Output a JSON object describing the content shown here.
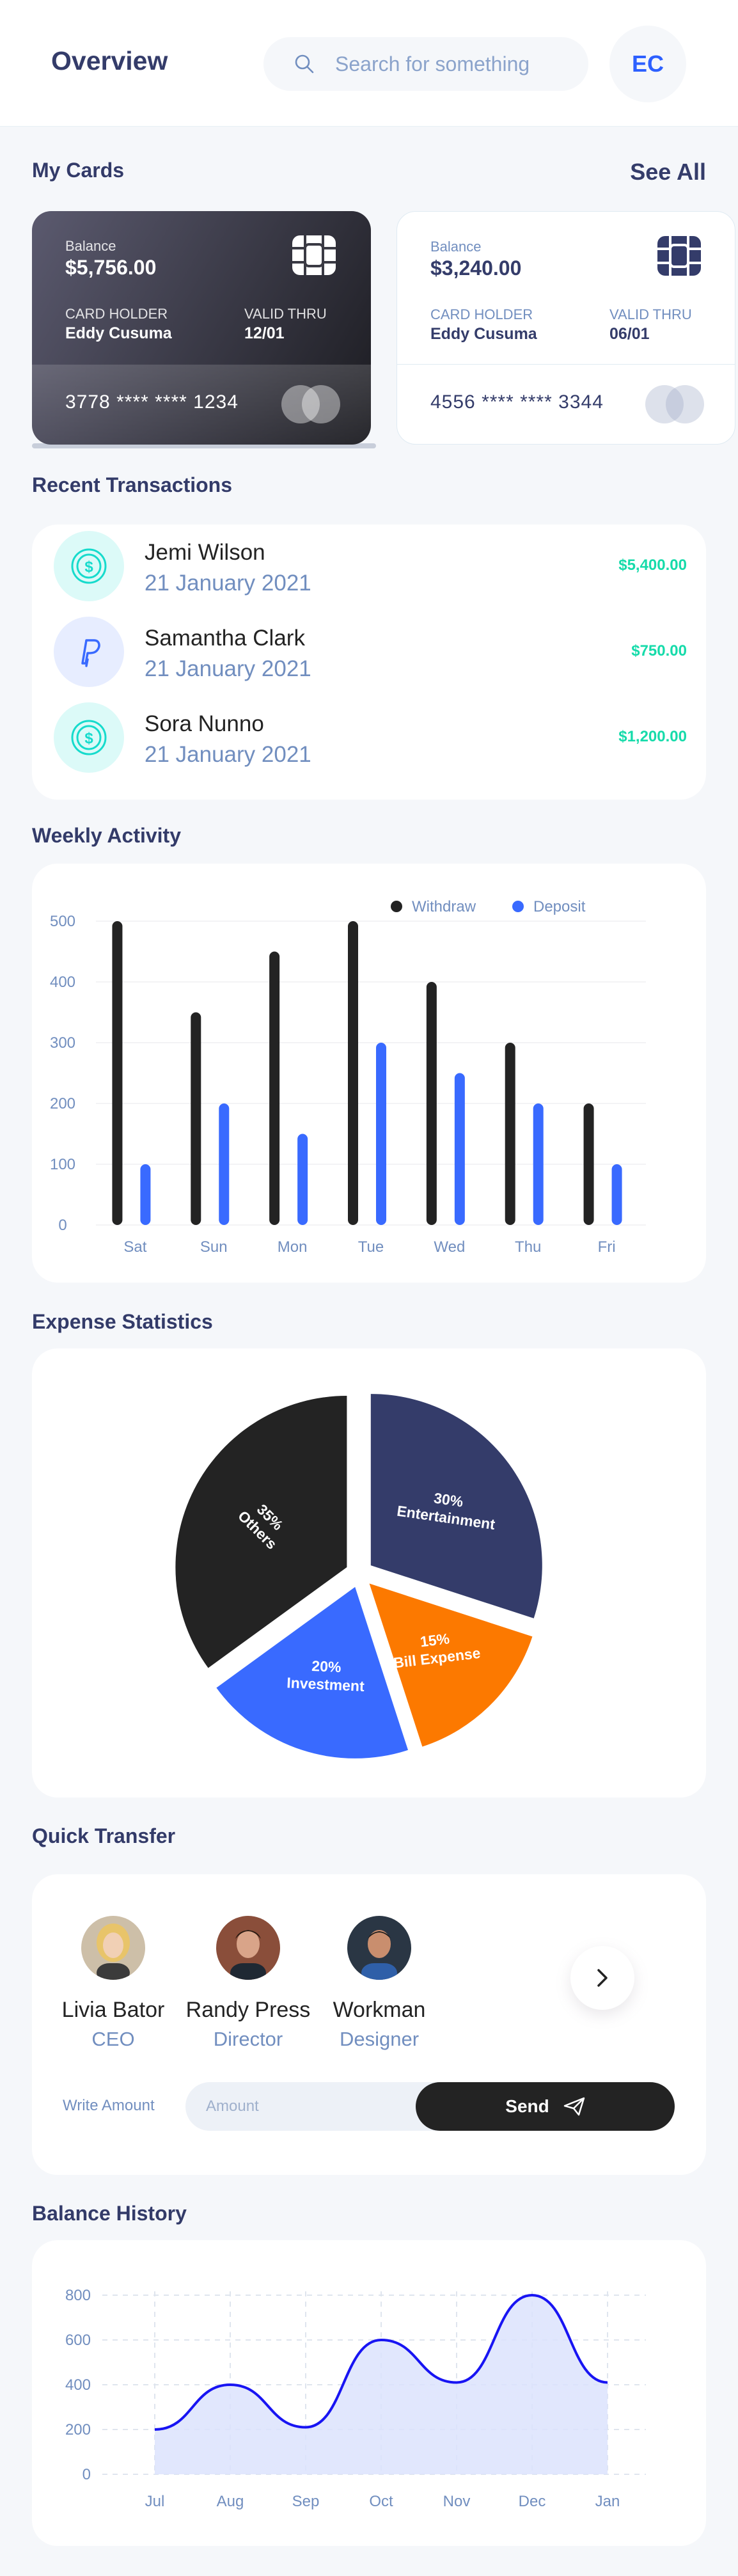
{
  "header": {
    "title": "Overview",
    "search_placeholder": "Search for something",
    "avatar_initials": "EC"
  },
  "my_cards": {
    "title": "My Cards",
    "see_all": "See All",
    "cards": [
      {
        "balance_label": "Balance",
        "balance": "$5,756.00",
        "holder_label": "CARD HOLDER",
        "holder": "Eddy Cusuma",
        "valid_label": "VALID THRU",
        "valid": "12/01",
        "number": "3778 **** **** 1234"
      },
      {
        "balance_label": "Balance",
        "balance": "$3,240.00",
        "holder_label": "CARD HOLDER",
        "holder": "Eddy Cusuma",
        "valid_label": "VALID THRU",
        "valid": "06/01",
        "number": "4556 **** **** 3344"
      }
    ]
  },
  "recent_transactions": {
    "title": "Recent Transactions",
    "items": [
      {
        "icon": "coin-icon",
        "name": "Jemi Wilson",
        "date": "21 January 2021",
        "amount": "$5,400.00"
      },
      {
        "icon": "paypal-icon",
        "name": "Samantha Clark",
        "date": "21 January 2021",
        "amount": "$750.00"
      },
      {
        "icon": "coin-icon",
        "name": "Sora Nunno",
        "date": "21 January 2021",
        "amount": "$1,200.00"
      }
    ]
  },
  "weekly_activity": {
    "title": "Weekly Activity",
    "chart_data": {
      "type": "bar",
      "categories": [
        "Sat",
        "Sun",
        "Mon",
        "Tue",
        "Wed",
        "Thu",
        "Fri"
      ],
      "series": [
        {
          "name": "Withdraw",
          "color": "#232323",
          "values": [
            500,
            350,
            450,
            500,
            400,
            300,
            200
          ]
        },
        {
          "name": "Deposit",
          "color": "#396AFF",
          "values": [
            100,
            200,
            150,
            300,
            250,
            200,
            100
          ]
        }
      ],
      "yticks": [
        0,
        100,
        200,
        300,
        400,
        500
      ],
      "ylim": [
        0,
        500
      ],
      "grid": true,
      "legend": "top-right"
    }
  },
  "expense_statistics": {
    "title": "Expense Statistics",
    "chart_data": {
      "type": "pie",
      "slices": [
        {
          "label": "Entertainment",
          "percent": "30%",
          "value": 30,
          "color": "#343C6A"
        },
        {
          "label": "Bill Expense",
          "percent": "15%",
          "value": 15,
          "color": "#FC7900"
        },
        {
          "label": "Investment",
          "percent": "20%",
          "value": 20,
          "color": "#396AFF"
        },
        {
          "label": "Others",
          "percent": "35%",
          "value": 35,
          "color": "#232323"
        }
      ]
    }
  },
  "quick_transfer": {
    "title": "Quick Transfer",
    "people": [
      {
        "name": "Livia Bator",
        "role": "CEO"
      },
      {
        "name": "Randy Press",
        "role": "Director"
      },
      {
        "name": "Workman",
        "role": "Designer"
      }
    ],
    "write_amount_label": "Write Amount",
    "amount_placeholder": "Amount",
    "send_label": "Send"
  },
  "balance_history": {
    "title": "Balance History",
    "chart_data": {
      "type": "area",
      "x": [
        "Jul",
        "Aug",
        "Sep",
        "Oct",
        "Nov",
        "Dec",
        "Jan"
      ],
      "values": [
        200,
        400,
        210,
        600,
        410,
        800,
        410
      ],
      "yticks": [
        0,
        200,
        400,
        600,
        800
      ],
      "ylim": [
        0,
        800
      ],
      "grid": true,
      "line_color": "#1814F3",
      "fill_color": "#DCE3FD"
    }
  }
}
